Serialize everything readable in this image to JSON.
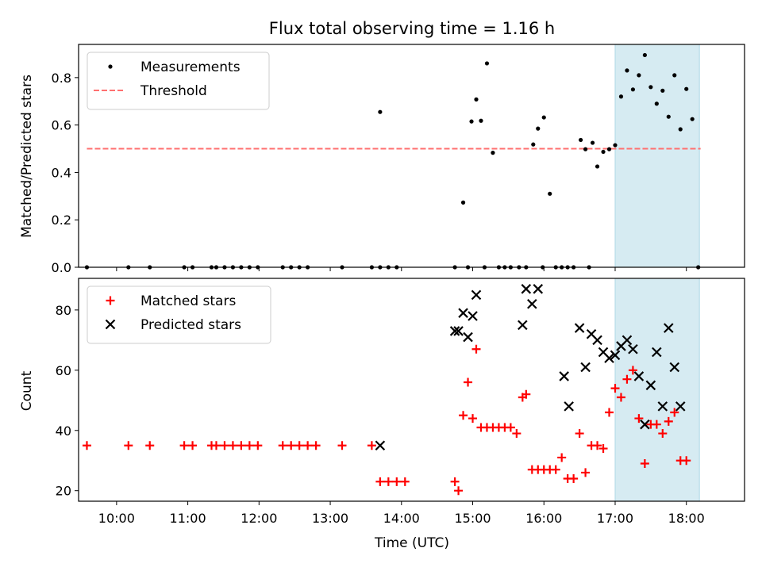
{
  "chart_data": {
    "type": "scatter",
    "title": "Flux total observing time = 1.16 h",
    "xlabel": "Time (UTC)",
    "x_ticks": [
      "10:00",
      "11:00",
      "12:00",
      "13:00",
      "14:00",
      "15:00",
      "16:00",
      "17:00",
      "18:00"
    ],
    "x_range": [
      "09:28",
      "18:49"
    ],
    "highlight_span": [
      "17:00",
      "18:11"
    ],
    "highlight_color": "#add8e6",
    "panels": [
      {
        "ylabel": "Matched/Predicted stars",
        "ylim": [
          0,
          0.94
        ],
        "y_ticks": [
          "0.0",
          "0.2",
          "0.4",
          "0.6",
          "0.8"
        ],
        "legend_position": "upper left",
        "threshold": {
          "name": "Threshold",
          "value": 0.5,
          "x_range": [
            "09:35",
            "18:12"
          ],
          "color": "#ff7070",
          "style": "dashed"
        },
        "series": [
          {
            "name": "Measurements",
            "marker": "dot",
            "color": "#000000",
            "points": [
              [
                "09:35",
                0
              ],
              [
                "10:10",
                0
              ],
              [
                "10:28",
                0
              ],
              [
                "10:57",
                0
              ],
              [
                "11:04",
                0
              ],
              [
                "11:20",
                0
              ],
              [
                "11:24",
                0
              ],
              [
                "11:31",
                0
              ],
              [
                "11:38",
                0
              ],
              [
                "11:45",
                0
              ],
              [
                "11:52",
                0
              ],
              [
                "11:59",
                0
              ],
              [
                "12:20",
                0
              ],
              [
                "12:27",
                0
              ],
              [
                "12:34",
                0
              ],
              [
                "12:41",
                0
              ],
              [
                "13:10",
                0
              ],
              [
                "13:35",
                0
              ],
              [
                "13:42",
                0
              ],
              [
                "13:42",
                0.655
              ],
              [
                "13:49",
                0
              ],
              [
                "13:56",
                0
              ],
              [
                "14:45",
                0
              ],
              [
                "14:52",
                0.273
              ],
              [
                "14:56",
                0
              ],
              [
                "14:59",
                0.615
              ],
              [
                "15:03",
                0.708
              ],
              [
                "15:07",
                0.618
              ],
              [
                "15:10",
                0
              ],
              [
                "15:12",
                0.86
              ],
              [
                "15:17",
                0.483
              ],
              [
                "15:22",
                0
              ],
              [
                "15:27",
                0
              ],
              [
                "15:32",
                0
              ],
              [
                "15:39",
                0
              ],
              [
                "15:45",
                0
              ],
              [
                "15:51",
                0.518
              ],
              [
                "15:55",
                0.585
              ],
              [
                "15:59",
                0
              ],
              [
                "16:00",
                0.632
              ],
              [
                "16:05",
                0.31
              ],
              [
                "16:10",
                0
              ],
              [
                "16:15",
                0
              ],
              [
                "16:20",
                0
              ],
              [
                "16:25",
                0
              ],
              [
                "16:31",
                0.537
              ],
              [
                "16:35",
                0.498
              ],
              [
                "16:38",
                0
              ],
              [
                "16:41",
                0.525
              ],
              [
                "16:45",
                0.425
              ],
              [
                "16:50",
                0.487
              ],
              [
                "16:55",
                0.498
              ],
              [
                "17:00",
                0.515
              ],
              [
                "17:05",
                0.72
              ],
              [
                "17:10",
                0.83
              ],
              [
                "17:15",
                0.75
              ],
              [
                "17:20",
                0.81
              ],
              [
                "17:25",
                0.895
              ],
              [
                "17:30",
                0.76
              ],
              [
                "17:35",
                0.69
              ],
              [
                "17:40",
                0.745
              ],
              [
                "17:45",
                0.635
              ],
              [
                "17:50",
                0.81
              ],
              [
                "17:55",
                0.582
              ],
              [
                "18:00",
                0.752
              ],
              [
                "18:05",
                0.625
              ],
              [
                "18:10",
                0
              ]
            ]
          }
        ]
      },
      {
        "ylabel": "Count",
        "ylim": [
          16.5,
          90.5
        ],
        "y_ticks": [
          "20",
          "40",
          "60",
          "80"
        ],
        "legend_position": "upper left",
        "series": [
          {
            "name": "Matched stars",
            "marker": "plus",
            "color": "#ff0000",
            "points": [
              [
                "09:35",
                35
              ],
              [
                "10:10",
                35
              ],
              [
                "10:28",
                35
              ],
              [
                "10:57",
                35
              ],
              [
                "11:04",
                35
              ],
              [
                "11:20",
                35
              ],
              [
                "11:24",
                35
              ],
              [
                "11:31",
                35
              ],
              [
                "11:38",
                35
              ],
              [
                "11:45",
                35
              ],
              [
                "11:52",
                35
              ],
              [
                "11:59",
                35
              ],
              [
                "12:20",
                35
              ],
              [
                "12:27",
                35
              ],
              [
                "12:34",
                35
              ],
              [
                "12:41",
                35
              ],
              [
                "12:48",
                35
              ],
              [
                "13:10",
                35
              ],
              [
                "13:35",
                35
              ],
              [
                "13:42",
                23
              ],
              [
                "13:49",
                23
              ],
              [
                "13:56",
                23
              ],
              [
                "14:03",
                23
              ],
              [
                "14:45",
                23
              ],
              [
                "14:48",
                20
              ],
              [
                "14:52",
                45
              ],
              [
                "14:56",
                56
              ],
              [
                "15:00",
                44
              ],
              [
                "15:03",
                67
              ],
              [
                "15:07",
                41
              ],
              [
                "15:12",
                41
              ],
              [
                "15:17",
                41
              ],
              [
                "15:22",
                41
              ],
              [
                "15:27",
                41
              ],
              [
                "15:32",
                41
              ],
              [
                "15:37",
                39
              ],
              [
                "15:42",
                51
              ],
              [
                "15:45",
                52
              ],
              [
                "15:50",
                27
              ],
              [
                "15:55",
                27
              ],
              [
                "16:00",
                27
              ],
              [
                "16:05",
                27
              ],
              [
                "16:10",
                27
              ],
              [
                "16:15",
                31
              ],
              [
                "16:20",
                24
              ],
              [
                "16:25",
                24
              ],
              [
                "16:30",
                39
              ],
              [
                "16:35",
                26
              ],
              [
                "16:40",
                35
              ],
              [
                "16:45",
                35
              ],
              [
                "16:50",
                34
              ],
              [
                "16:55",
                46
              ],
              [
                "17:00",
                54
              ],
              [
                "17:05",
                51
              ],
              [
                "17:10",
                57
              ],
              [
                "17:15",
                60
              ],
              [
                "17:20",
                44
              ],
              [
                "17:25",
                29
              ],
              [
                "17:30",
                42
              ],
              [
                "17:35",
                42
              ],
              [
                "17:40",
                39
              ],
              [
                "17:45",
                43
              ],
              [
                "17:50",
                46
              ],
              [
                "17:55",
                30
              ],
              [
                "18:00",
                30
              ]
            ]
          },
          {
            "name": "Predicted stars",
            "marker": "x",
            "color": "#000000",
            "points": [
              [
                "13:42",
                35
              ],
              [
                "14:45",
                73
              ],
              [
                "14:48",
                73
              ],
              [
                "14:52",
                79
              ],
              [
                "14:56",
                71
              ],
              [
                "15:00",
                78
              ],
              [
                "15:03",
                85
              ],
              [
                "15:42",
                75
              ],
              [
                "15:45",
                87
              ],
              [
                "15:50",
                82
              ],
              [
                "15:55",
                87
              ],
              [
                "16:17",
                58
              ],
              [
                "16:21",
                48
              ],
              [
                "16:30",
                74
              ],
              [
                "16:35",
                61
              ],
              [
                "16:40",
                72
              ],
              [
                "16:45",
                70
              ],
              [
                "16:50",
                66
              ],
              [
                "16:55",
                64
              ],
              [
                "17:00",
                65
              ],
              [
                "17:05",
                68
              ],
              [
                "17:10",
                70
              ],
              [
                "17:15",
                67
              ],
              [
                "17:20",
                58
              ],
              [
                "17:25",
                42
              ],
              [
                "17:30",
                55
              ],
              [
                "17:35",
                66
              ],
              [
                "17:40",
                48
              ],
              [
                "17:45",
                74
              ],
              [
                "17:50",
                61
              ],
              [
                "17:55",
                48
              ]
            ]
          }
        ]
      }
    ]
  }
}
